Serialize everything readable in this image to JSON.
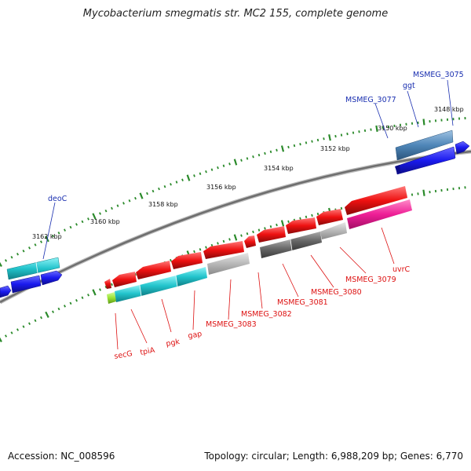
{
  "title": "Mycobacterium smegmatis str. MC2 155, complete genome",
  "footer": {
    "accession": "Accession: NC_008596",
    "summary": "Topology: circular; Length: 6,988,209 bp; Genes: 6,770"
  },
  "colors": {
    "forward_strand": "#1a1aee",
    "reverse_red": "#ee1111",
    "cyan": "#22c4cc",
    "steel": "#4f86b8",
    "gray_dark": "#666666",
    "gray_light": "#b8b8b8",
    "pink": "#ee1e96",
    "lime": "#9ae234",
    "tick_green": "#2a8a2a",
    "label_blue": "#1a2fb0",
    "label_red": "#dd1111",
    "backbone": "#777777"
  },
  "scale_ticks": [
    {
      "label": "3148 kbp",
      "kbp": 3148
    },
    {
      "label": "3150 kbp",
      "kbp": 3150
    },
    {
      "label": "3152 kbp",
      "kbp": 3152
    },
    {
      "label": "3154 kbp",
      "kbp": 3154
    },
    {
      "label": "3156 kbp",
      "kbp": 3156
    },
    {
      "label": "3158 kbp",
      "kbp": 3158
    },
    {
      "label": "3160 kbp",
      "kbp": 3160
    },
    {
      "label": "3162 kbp",
      "kbp": 3162
    }
  ],
  "genes_forward": [
    {
      "id": "MSMEG_3075",
      "label": "MSMEG_3075",
      "start_kbp": 3147.55,
      "end_kbp": 3148.05,
      "type": "blue"
    },
    {
      "id": "ggt",
      "label": "ggt",
      "start_kbp": 3148.15,
      "end_kbp": 3149.35,
      "type": "steel"
    },
    {
      "id": "MSMEG_3077",
      "label": "MSMEG_3077",
      "start_kbp": 3148.3,
      "end_kbp": 3150.1,
      "type": "blue"
    },
    {
      "id": "deoC",
      "label": "deoC",
      "start_kbp": 3162.4,
      "end_kbp": 3163.5,
      "type": "cyan"
    }
  ],
  "labels_reverse": [
    {
      "label": "uvrC",
      "kbp": 3150.85
    },
    {
      "label": "MSMEG_3079",
      "kbp": 3152.05
    },
    {
      "label": "MSMEG_3080",
      "kbp": 3153.0
    },
    {
      "label": "MSMEG_3081",
      "kbp": 3153.9
    },
    {
      "label": "MSMEG_3082",
      "kbp": 3155.0
    },
    {
      "label": "MSMEG_3083",
      "kbp": 3156.4
    },
    {
      "label": "gap",
      "kbp": 3158.0
    },
    {
      "label": "pgk",
      "kbp": 3158.7
    },
    {
      "label": "tpiA",
      "kbp": 3159.95
    },
    {
      "label": "secG",
      "kbp": 3160.5
    }
  ]
}
